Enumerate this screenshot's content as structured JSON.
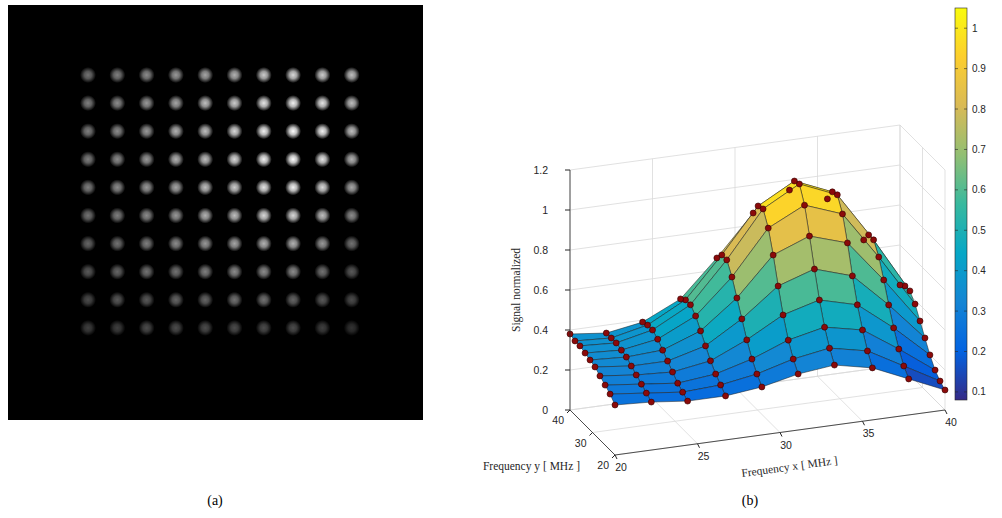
{
  "chart_data": [
    {
      "type": "image",
      "title": "(a)",
      "intensity": [
        [
          0.45,
          0.5,
          0.55,
          0.6,
          0.65,
          0.7,
          0.8,
          0.85,
          0.8,
          0.75
        ],
        [
          0.5,
          0.55,
          0.6,
          0.65,
          0.75,
          0.8,
          0.9,
          0.95,
          0.9,
          0.75
        ],
        [
          0.5,
          0.55,
          0.6,
          0.7,
          0.75,
          0.85,
          0.95,
          1.0,
          0.95,
          0.75
        ],
        [
          0.5,
          0.55,
          0.6,
          0.7,
          0.75,
          0.85,
          0.95,
          1.0,
          0.9,
          0.7
        ],
        [
          0.5,
          0.55,
          0.6,
          0.65,
          0.75,
          0.8,
          0.9,
          0.95,
          0.85,
          0.65
        ],
        [
          0.45,
          0.5,
          0.55,
          0.6,
          0.7,
          0.75,
          0.85,
          0.85,
          0.75,
          0.55
        ],
        [
          0.4,
          0.45,
          0.5,
          0.55,
          0.6,
          0.65,
          0.7,
          0.7,
          0.6,
          0.45
        ],
        [
          0.35,
          0.4,
          0.45,
          0.45,
          0.5,
          0.55,
          0.55,
          0.55,
          0.45,
          0.35
        ],
        [
          0.3,
          0.35,
          0.35,
          0.4,
          0.4,
          0.45,
          0.45,
          0.4,
          0.35,
          0.3
        ],
        [
          0.25,
          0.25,
          0.3,
          0.3,
          0.3,
          0.3,
          0.3,
          0.3,
          0.25,
          0.2
        ]
      ]
    },
    {
      "type": "surface",
      "title": "(b)",
      "x": [
        20,
        22.2,
        24.4,
        26.7,
        28.9,
        31.1,
        33.3,
        35.6,
        37.8,
        40
      ],
      "y": [
        20,
        22.2,
        24.4,
        26.7,
        28.9,
        31.1,
        33.3,
        35.6,
        37.8,
        40
      ],
      "z": [
        [
          0.25,
          0.24,
          0.22,
          0.22,
          0.24,
          0.28,
          0.3,
          0.26,
          0.18,
          0.1
        ],
        [
          0.28,
          0.26,
          0.24,
          0.25,
          0.28,
          0.33,
          0.36,
          0.32,
          0.22,
          0.12
        ],
        [
          0.3,
          0.28,
          0.26,
          0.28,
          0.33,
          0.4,
          0.44,
          0.4,
          0.28,
          0.15
        ],
        [
          0.32,
          0.3,
          0.29,
          0.32,
          0.4,
          0.5,
          0.55,
          0.5,
          0.36,
          0.2
        ],
        [
          0.34,
          0.32,
          0.32,
          0.37,
          0.48,
          0.62,
          0.68,
          0.62,
          0.45,
          0.26
        ],
        [
          0.35,
          0.34,
          0.35,
          0.42,
          0.56,
          0.75,
          0.82,
          0.76,
          0.55,
          0.32
        ],
        [
          0.36,
          0.35,
          0.38,
          0.47,
          0.64,
          0.86,
          0.95,
          0.88,
          0.64,
          0.38
        ],
        [
          0.37,
          0.36,
          0.4,
          0.5,
          0.7,
          0.93,
          1.03,
          0.95,
          0.7,
          0.42
        ],
        [
          0.37,
          0.36,
          0.4,
          0.5,
          0.7,
          0.92,
          1.02,
          0.94,
          0.7,
          0.42
        ],
        [
          0.38,
          0.36,
          0.39,
          0.48,
          0.66,
          0.86,
          0.95,
          0.88,
          0.65,
          0.4
        ]
      ],
      "xlim": [
        20,
        40
      ],
      "ylim": [
        20,
        40
      ],
      "zlim": [
        0,
        1.2
      ],
      "xticks": [
        20,
        25,
        30,
        35,
        40
      ],
      "yticks": [
        20,
        30,
        40
      ],
      "zticks": [
        0,
        0.2,
        0.4,
        0.6,
        0.8,
        1,
        1.2
      ],
      "xlabel": "Frequency x [ MHz ]",
      "ylabel": "Frequency y [ MHz ]",
      "zlabel": "Signal normalized",
      "grid": true,
      "marker": "circle",
      "color": "#8b0a0a",
      "colorbar": {
        "lim": [
          0.08,
          1.05
        ],
        "ticks": [
          0.1,
          0.2,
          0.3,
          0.4,
          0.5,
          0.6,
          0.7,
          0.8,
          0.9,
          1
        ]
      }
    }
  ]
}
